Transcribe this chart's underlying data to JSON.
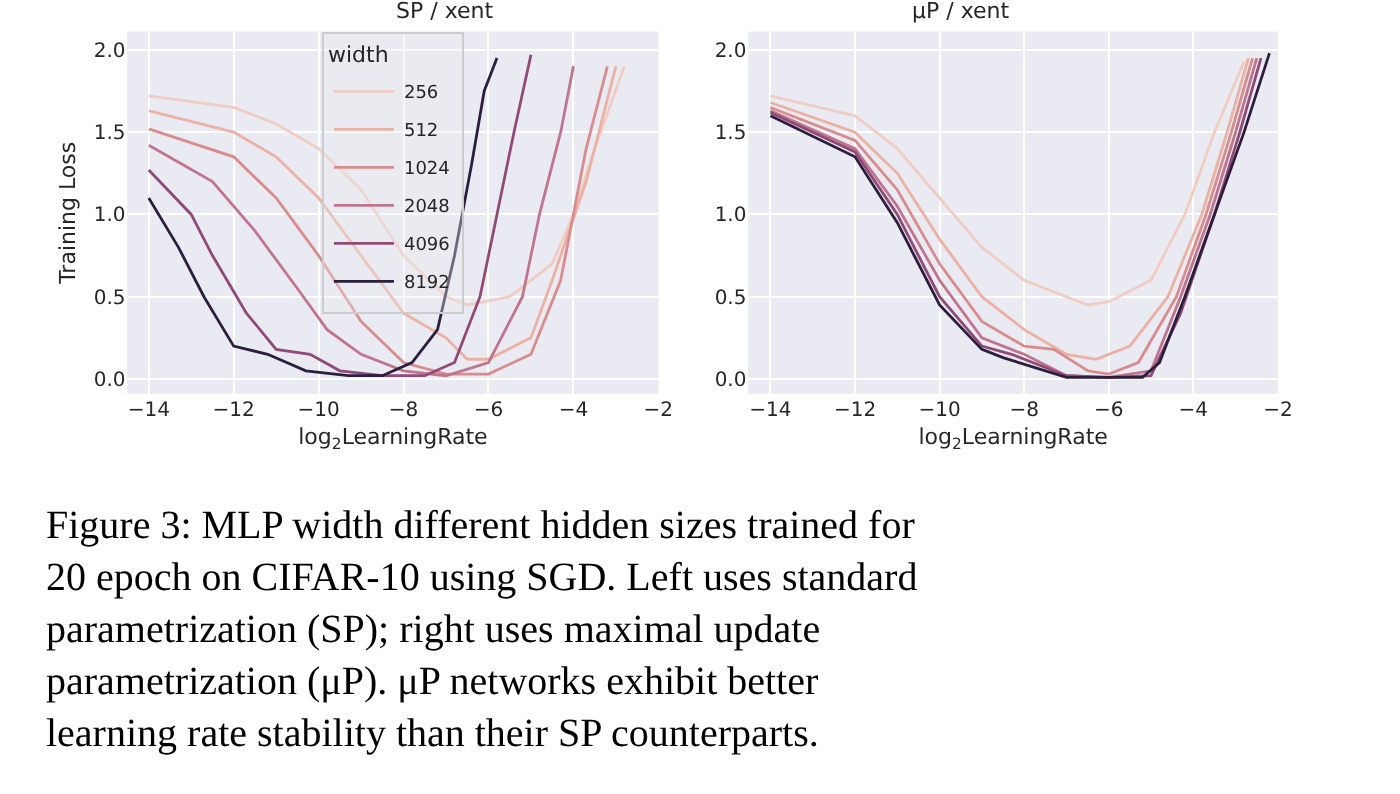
{
  "chart_data": [
    {
      "type": "line",
      "title": "SP / xent",
      "xlabel": "log$_{2}$LearningRate",
      "ylabel": "Training Loss",
      "legend_title": "width",
      "legend": "top",
      "grid": true,
      "xlim": [
        -14.5,
        -2
      ],
      "xticks": [
        {
          "value": -14,
          "label": "−14"
        },
        {
          "value": -12,
          "label": "−12"
        },
        {
          "value": -10,
          "label": "−10"
        },
        {
          "value": -8,
          "label": "−8"
        },
        {
          "value": -6,
          "label": "−6"
        },
        {
          "value": -4,
          "label": "−4"
        },
        {
          "value": -2,
          "label": "−2"
        }
      ],
      "ylim": [
        -0.09,
        2.11
      ],
      "yticks": [
        {
          "value": 0,
          "label": "0.0"
        },
        {
          "value": 0.5,
          "label": "0.5"
        },
        {
          "value": 1,
          "label": "1.0"
        },
        {
          "value": 1.5,
          "label": "1.5"
        },
        {
          "value": 2,
          "label": "2.0"
        }
      ],
      "series": [
        {
          "name": "256",
          "color": "#f0cdc2",
          "x": [
            -14,
            -12,
            -11,
            -10,
            -9,
            -8,
            -7,
            -6.5,
            -5.5,
            -4.5,
            -4,
            -3.5,
            -2.8
          ],
          "values": [
            1.72,
            1.65,
            1.55,
            1.4,
            1.15,
            0.75,
            0.5,
            0.45,
            0.5,
            0.7,
            1.0,
            1.4,
            1.9
          ]
        },
        {
          "name": "512",
          "color": "#eab1a4",
          "x": [
            -14,
            -12,
            -11,
            -10,
            -9,
            -8,
            -7,
            -6.5,
            -6,
            -5,
            -4.5,
            -3.7,
            -3
          ],
          "values": [
            1.63,
            1.5,
            1.35,
            1.1,
            0.75,
            0.4,
            0.25,
            0.12,
            0.12,
            0.25,
            0.6,
            1.2,
            1.9
          ]
        },
        {
          "name": "1024",
          "color": "#d98c8d",
          "x": [
            -14,
            -12,
            -11,
            -10,
            -9,
            -8,
            -7,
            -6,
            -5,
            -4.3,
            -3.7,
            -3.2
          ],
          "values": [
            1.52,
            1.35,
            1.1,
            0.75,
            0.35,
            0.1,
            0.03,
            0.03,
            0.15,
            0.6,
            1.4,
            1.9
          ]
        },
        {
          "name": "2048",
          "color": "#c0748e",
          "x": [
            -14,
            -12.5,
            -11.5,
            -10.5,
            -9.8,
            -9,
            -8,
            -7,
            -6,
            -5.2,
            -4.8,
            -4.3,
            -4
          ],
          "values": [
            1.42,
            1.2,
            0.9,
            0.55,
            0.3,
            0.15,
            0.05,
            0.02,
            0.1,
            0.5,
            1.0,
            1.5,
            1.9
          ]
        },
        {
          "name": "4096",
          "color": "#8f4a76",
          "x": [
            -14,
            -13,
            -12.5,
            -11.7,
            -11,
            -10.2,
            -9.5,
            -8.5,
            -7.5,
            -6.8,
            -6.2,
            -5.8,
            -5.4,
            -5
          ],
          "values": [
            1.27,
            1.0,
            0.75,
            0.4,
            0.18,
            0.15,
            0.05,
            0.02,
            0.02,
            0.1,
            0.5,
            1.0,
            1.5,
            1.97
          ]
        },
        {
          "name": "8192",
          "color": "#2d1e3e",
          "x": [
            -14,
            -13.3,
            -12.7,
            -12,
            -11.2,
            -10.3,
            -9.3,
            -8.5,
            -7.8,
            -7.2,
            -6.8,
            -6.4,
            -6.1,
            -5.8
          ],
          "values": [
            1.1,
            0.8,
            0.5,
            0.2,
            0.15,
            0.05,
            0.02,
            0.02,
            0.1,
            0.3,
            0.75,
            1.3,
            1.75,
            1.95
          ]
        }
      ],
      "annotations": [
        "Figure 3: MLP width different hidden sizes trained for 20 epoch on CIFAR-10 using SGD. Left uses standard parametrization (SP); right uses maximal update parametrization (μP). μP networks exhibit better learning rate stability than their SP counterparts."
      ]
    },
    {
      "type": "line",
      "title": "μP / xent",
      "xlabel": "log$_{2}$LearningRate",
      "grid": true,
      "xlim": [
        -14.52,
        -2
      ],
      "xticks": [
        {
          "value": -14,
          "label": "−14"
        },
        {
          "value": -12,
          "label": "−12"
        },
        {
          "value": -10,
          "label": "−10"
        },
        {
          "value": -8,
          "label": "−8"
        },
        {
          "value": -6,
          "label": "−6"
        },
        {
          "value": -4,
          "label": "−4"
        },
        {
          "value": -2,
          "label": "−2"
        }
      ],
      "ylim": [
        -0.09,
        2.11
      ],
      "yticks": [
        {
          "value": 0,
          "label": "0.0"
        },
        {
          "value": 0.5,
          "label": "0.5"
        },
        {
          "value": 1,
          "label": "1.0"
        },
        {
          "value": 1.5,
          "label": "1.5"
        },
        {
          "value": 2,
          "label": "2.0"
        }
      ],
      "series": [
        {
          "color": "#f0cdc2",
          "x": [
            -14,
            -12,
            -11,
            -10,
            -9,
            -8,
            -6.5,
            -6,
            -5,
            -4.2,
            -3.5,
            -2.8
          ],
          "values": [
            1.72,
            1.6,
            1.4,
            1.1,
            0.8,
            0.6,
            0.45,
            0.47,
            0.6,
            1.0,
            1.5,
            1.93
          ]
        },
        {
          "color": "#eab1a4",
          "x": [
            -14,
            -12,
            -11,
            -10,
            -9,
            -8,
            -7,
            -6.3,
            -5.5,
            -4.6,
            -3.8,
            -3.2,
            -2.7
          ],
          "values": [
            1.68,
            1.5,
            1.25,
            0.85,
            0.5,
            0.3,
            0.15,
            0.12,
            0.2,
            0.5,
            1.0,
            1.5,
            1.95
          ]
        },
        {
          "color": "#d98c8d",
          "x": [
            -14,
            -12,
            -11,
            -10,
            -9,
            -8,
            -7.3,
            -6.5,
            -6,
            -5.3,
            -4.4,
            -3.7,
            -3.1,
            -2.6
          ],
          "values": [
            1.65,
            1.45,
            1.15,
            0.7,
            0.35,
            0.2,
            0.18,
            0.05,
            0.03,
            0.1,
            0.5,
            1.0,
            1.5,
            1.95
          ]
        },
        {
          "color": "#c0748e",
          "x": [
            -14,
            -12,
            -11,
            -10,
            -9,
            -8,
            -7,
            -6,
            -5,
            -4.3,
            -3.6,
            -3,
            -2.5
          ],
          "values": [
            1.63,
            1.4,
            1.05,
            0.6,
            0.25,
            0.15,
            0.02,
            0.01,
            0.05,
            0.5,
            1.0,
            1.5,
            1.95
          ]
        },
        {
          "color": "#8f4a76",
          "x": [
            -14,
            -12,
            -11,
            -10,
            -9,
            -8.3,
            -7,
            -6,
            -5,
            -4.3,
            -3.5,
            -2.9,
            -2.4
          ],
          "values": [
            1.62,
            1.38,
            1.0,
            0.5,
            0.2,
            0.15,
            0.02,
            0.01,
            0.02,
            0.4,
            1.0,
            1.5,
            1.95
          ]
        },
        {
          "color": "#2d1e3e",
          "x": [
            -14,
            -12,
            -11,
            -10,
            -9,
            -8.5,
            -7,
            -6,
            -5.2,
            -4.8,
            -4.2,
            -3.5,
            -2.8,
            -2.2
          ],
          "values": [
            1.6,
            1.35,
            0.95,
            0.45,
            0.18,
            0.13,
            0.01,
            0.01,
            0.01,
            0.1,
            0.5,
            1.0,
            1.5,
            1.98
          ]
        }
      ]
    }
  ]
}
